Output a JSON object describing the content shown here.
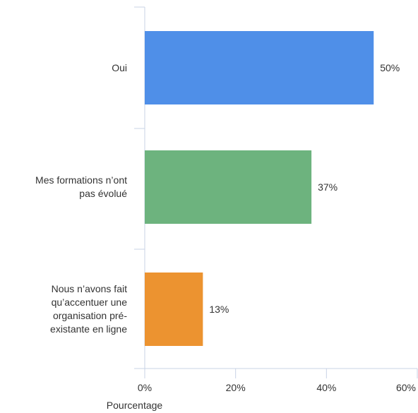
{
  "chart_data": {
    "type": "bar",
    "orientation": "horizontal",
    "title": "",
    "xlabel": "Pourcentage",
    "ylabel": "",
    "xlim": [
      0,
      60
    ],
    "x_ticks": [
      "0%",
      "20%",
      "40%",
      "60%"
    ],
    "categories": [
      "Oui",
      "Mes formations n’ont pas évolué",
      "Nous n’avons fait qu’accentuer une organisation pré-existante en ligne"
    ],
    "category_lines": [
      [
        "Oui"
      ],
      [
        "Mes formations n’ont",
        "pas évolué"
      ],
      [
        "Nous n’avons fait",
        "qu’accentuer une",
        "organisation pré-",
        "existante en ligne"
      ]
    ],
    "values": [
      50.4,
      36.7,
      12.8
    ],
    "value_labels": [
      "50%",
      "37%",
      "13%"
    ],
    "colors": [
      "#4f8fe8",
      "#6db37e",
      "#ec9330"
    ],
    "grid": false,
    "legend": "none"
  }
}
